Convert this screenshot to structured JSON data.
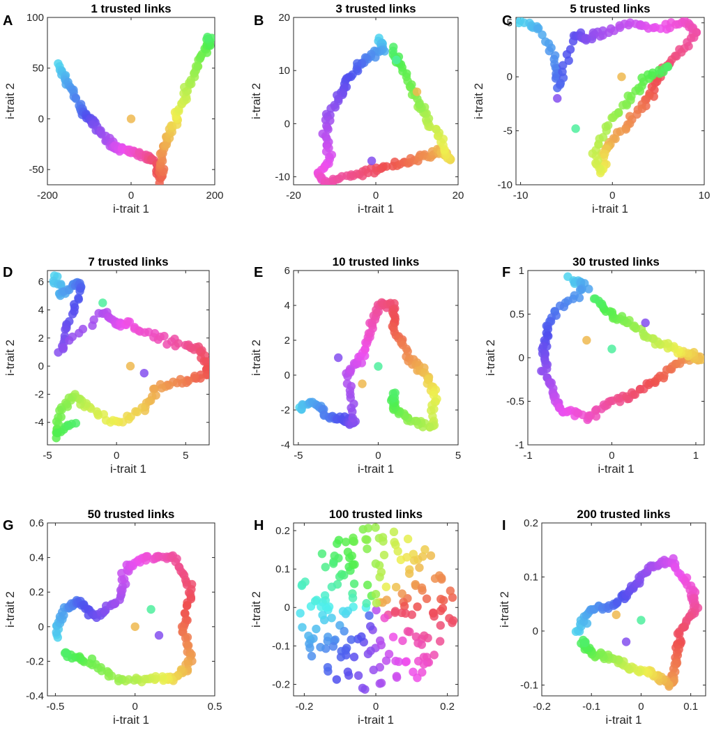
{
  "chart_data": [
    {
      "type": "scatter",
      "label": "A",
      "title": "1 trusted links",
      "xlabel": "i-trait 1",
      "ylabel": "i-trait 2",
      "xlim": [
        -200,
        200
      ],
      "ylim": [
        -65,
        100
      ],
      "xticks": [
        -200,
        0,
        200
      ],
      "yticks": [
        -50,
        0,
        50,
        100
      ],
      "xtick_labels": [
        "-200",
        "0",
        "200"
      ],
      "ytick_labels": [
        "-50",
        "0",
        "50",
        "100"
      ],
      "shape": "v",
      "anchors": [
        [
          -175,
          52
        ],
        [
          -150,
          35
        ],
        [
          -120,
          10
        ],
        [
          -100,
          0
        ],
        [
          -80,
          -10
        ],
        [
          -50,
          -25
        ],
        [
          -20,
          -30
        ],
        [
          10,
          -33
        ],
        [
          40,
          -38
        ],
        [
          60,
          -45
        ],
        [
          68,
          -60
        ],
        [
          75,
          -35
        ],
        [
          90,
          -15
        ],
        [
          110,
          5
        ],
        [
          130,
          25
        ],
        [
          155,
          50
        ],
        [
          180,
          70
        ],
        [
          188,
          80
        ]
      ],
      "outliers": [
        [
          0,
          0
        ]
      ]
    },
    {
      "type": "scatter",
      "label": "B",
      "title": "3 trusted links",
      "xlabel": "i-trait 1",
      "ylabel": "i-trait 2",
      "xlim": [
        -20,
        20
      ],
      "ylim": [
        -11.5,
        20
      ],
      "xticks": [
        -20,
        0,
        20
      ],
      "yticks": [
        -10,
        0,
        10,
        20
      ],
      "xtick_labels": [
        "-20",
        "0",
        "20"
      ],
      "ytick_labels": [
        "-10",
        "0",
        "10",
        "20"
      ],
      "shape": "triangle",
      "anchors": [
        [
          1,
          16
        ],
        [
          2,
          14
        ],
        [
          -1,
          13
        ],
        [
          -4,
          11
        ],
        [
          -7,
          8
        ],
        [
          -9,
          5
        ],
        [
          -12,
          1
        ],
        [
          -12,
          -3
        ],
        [
          -11,
          -7
        ],
        [
          -14,
          -10
        ],
        [
          -12,
          -11
        ],
        [
          -7,
          -10
        ],
        [
          -2,
          -9
        ],
        [
          3,
          -8
        ],
        [
          8,
          -7
        ],
        [
          13,
          -6
        ],
        [
          16,
          -5
        ],
        [
          18,
          -7
        ],
        [
          16,
          -3
        ],
        [
          13,
          0
        ],
        [
          11,
          3
        ],
        [
          9,
          6
        ],
        [
          6,
          11
        ],
        [
          4,
          14
        ]
      ],
      "outliers": [
        [
          10,
          6
        ],
        [
          5,
          12
        ],
        [
          -1,
          -7
        ]
      ]
    },
    {
      "type": "scatter",
      "label": "C",
      "title": "5 trusted links",
      "xlabel": "i-trait 1",
      "ylabel": "i-trait 2",
      "xlim": [
        -10.5,
        10
      ],
      "ylim": [
        -10,
        5.5
      ],
      "xticks": [
        -10,
        0,
        10
      ],
      "yticks": [
        -10,
        -5,
        0,
        5
      ],
      "xtick_labels": [
        "-10",
        "0",
        "10"
      ],
      "ytick_labels": [
        "-10",
        "-5",
        "0",
        "5"
      ],
      "shape": "loop",
      "anchors": [
        [
          -10,
          5
        ],
        [
          -8,
          4.5
        ],
        [
          -6,
          1
        ],
        [
          -6,
          -1
        ],
        [
          -4,
          4
        ],
        [
          -3,
          3.5
        ],
        [
          -1,
          4
        ],
        [
          2,
          5
        ],
        [
          5,
          4.5
        ],
        [
          8,
          5
        ],
        [
          9,
          4
        ],
        [
          7,
          2
        ],
        [
          5,
          0
        ],
        [
          4,
          -2
        ],
        [
          2,
          -4
        ],
        [
          0,
          -6
        ],
        [
          -1,
          -7
        ],
        [
          -1,
          -9
        ],
        [
          -2,
          -7
        ],
        [
          0,
          -4
        ],
        [
          2,
          -2
        ],
        [
          4,
          0
        ],
        [
          6,
          1
        ]
      ],
      "outliers": [
        [
          1,
          0
        ],
        [
          -4,
          -4.8
        ],
        [
          -6,
          -2
        ]
      ]
    },
    {
      "type": "scatter",
      "label": "D",
      "title": "7 trusted links",
      "xlabel": "i-trait 1",
      "ylabel": "i-trait 2",
      "xlim": [
        -5,
        6.7
      ],
      "ylim": [
        -5.6,
        6.8
      ],
      "xticks": [
        -5,
        0,
        5
      ],
      "yticks": [
        -4,
        -2,
        0,
        2,
        4,
        6
      ],
      "xtick_labels": [
        "-5",
        "0",
        "5"
      ],
      "ytick_labels": [
        "-4",
        "-2",
        "0",
        "2",
        "4",
        "6"
      ],
      "shape": "loop",
      "anchors": [
        [
          -4.5,
          6.5
        ],
        [
          -4,
          5
        ],
        [
          -3,
          6
        ],
        [
          -2.5,
          5.5
        ],
        [
          -3.5,
          3
        ],
        [
          -4,
          1
        ],
        [
          -1,
          4
        ],
        [
          0,
          3
        ],
        [
          1,
          3
        ],
        [
          3,
          2
        ],
        [
          5,
          1.5
        ],
        [
          6.3,
          1
        ],
        [
          6.5,
          -0.5
        ],
        [
          5,
          -1
        ],
        [
          3,
          -1.5
        ],
        [
          2,
          -3
        ],
        [
          0,
          -4
        ],
        [
          -2,
          -3
        ],
        [
          -3,
          -2
        ],
        [
          -4,
          -3
        ],
        [
          -4.5,
          -5
        ],
        [
          -3,
          -4
        ]
      ],
      "outliers": [
        [
          1,
          0
        ],
        [
          -1,
          4.5
        ],
        [
          2,
          -0.5
        ]
      ]
    },
    {
      "type": "scatter",
      "label": "E",
      "title": "10 trusted links",
      "xlabel": "i-trait 1",
      "ylabel": "i-trait 2",
      "xlim": [
        -5.3,
        5
      ],
      "ylim": [
        -4,
        6
      ],
      "xticks": [
        -5,
        0,
        5
      ],
      "yticks": [
        -4,
        -2,
        0,
        2,
        4,
        6
      ],
      "xtick_labels": [
        "-5",
        "0",
        "5"
      ],
      "ytick_labels": [
        "-4",
        "-2",
        "0",
        "2",
        "4",
        "6"
      ],
      "shape": "loop",
      "anchors": [
        [
          -5,
          -2
        ],
        [
          -4,
          -1.5
        ],
        [
          -3,
          -2.5
        ],
        [
          -2,
          -2.5
        ],
        [
          -1.5,
          -2.8
        ],
        [
          -2,
          0
        ],
        [
          -1,
          1
        ],
        [
          -0.5,
          2.5
        ],
        [
          0,
          4
        ],
        [
          1,
          4
        ],
        [
          1,
          2.5
        ],
        [
          2,
          1
        ],
        [
          3,
          0
        ],
        [
          3.5,
          -1
        ],
        [
          3.5,
          -3
        ],
        [
          2,
          -2.5
        ],
        [
          1,
          -2
        ],
        [
          1,
          -1
        ]
      ],
      "outliers": [
        [
          -1,
          -0.5
        ],
        [
          0,
          0.5
        ],
        [
          -2.5,
          1
        ]
      ]
    },
    {
      "type": "scatter",
      "label": "F",
      "title": "30 trusted links",
      "xlabel": "i-trait 1",
      "ylabel": "i-trait 2",
      "xlim": [
        -1,
        1.1
      ],
      "ylim": [
        -1,
        1
      ],
      "xticks": [
        -1,
        0,
        1
      ],
      "yticks": [
        -1,
        -0.5,
        0,
        0.5,
        1
      ],
      "xtick_labels": [
        "-1",
        "0",
        "1"
      ],
      "ytick_labels": [
        "-1",
        "-0.5",
        "0",
        "0.5",
        "1"
      ],
      "shape": "loop",
      "anchors": [
        [
          -0.5,
          0.9
        ],
        [
          -0.3,
          0.8
        ],
        [
          -0.7,
          0.5
        ],
        [
          -0.8,
          0.2
        ],
        [
          -0.8,
          -0.1
        ],
        [
          -0.7,
          -0.4
        ],
        [
          -0.6,
          -0.6
        ],
        [
          -0.3,
          -0.7
        ],
        [
          0,
          -0.5
        ],
        [
          0.3,
          -0.4
        ],
        [
          0.6,
          -0.2
        ],
        [
          0.9,
          0
        ],
        [
          1.05,
          0
        ],
        [
          0.8,
          0.1
        ],
        [
          0.5,
          0.2
        ],
        [
          0.2,
          0.4
        ],
        [
          0,
          0.5
        ],
        [
          -0.2,
          0.7
        ]
      ],
      "outliers": [
        [
          -0.3,
          0.2
        ],
        [
          0,
          0.1
        ],
        [
          0.4,
          0.4
        ]
      ]
    },
    {
      "type": "scatter",
      "label": "G",
      "title": "50 trusted links",
      "xlabel": "i-trait 1",
      "ylabel": "i-trait 2",
      "xlim": [
        -0.55,
        0.5
      ],
      "ylim": [
        -0.4,
        0.6
      ],
      "xticks": [
        -0.5,
        0,
        0.5
      ],
      "yticks": [
        -0.4,
        -0.2,
        0,
        0.2,
        0.4,
        0.6
      ],
      "xtick_labels": [
        "-0.5",
        "0",
        "0.5"
      ],
      "ytick_labels": [
        "-0.4",
        "-0.2",
        "0",
        "0.2",
        "0.4",
        "0.6"
      ],
      "shape": "ring",
      "anchors": [
        [
          -0.5,
          -0.05
        ],
        [
          -0.45,
          0.1
        ],
        [
          -0.35,
          0.15
        ],
        [
          -0.25,
          0.05
        ],
        [
          -0.1,
          0.15
        ],
        [
          -0.05,
          0.35
        ],
        [
          0.1,
          0.4
        ],
        [
          0.25,
          0.4
        ],
        [
          0.35,
          0.2
        ],
        [
          0.3,
          0
        ],
        [
          0.35,
          -0.2
        ],
        [
          0.25,
          -0.3
        ],
        [
          0.1,
          -0.3
        ],
        [
          -0.1,
          -0.3
        ],
        [
          -0.3,
          -0.2
        ],
        [
          -0.45,
          -0.15
        ]
      ],
      "outliers": [
        [
          0,
          0
        ],
        [
          0.1,
          0.1
        ],
        [
          0.15,
          -0.05
        ]
      ]
    },
    {
      "type": "scatter",
      "label": "H",
      "title": "100 trusted links",
      "xlabel": "i-trait 1",
      "ylabel": "i-trait 2",
      "xlim": [
        -0.23,
        0.23
      ],
      "ylim": [
        -0.23,
        0.22
      ],
      "xticks": [
        -0.2,
        0,
        0.2
      ],
      "yticks": [
        -0.2,
        -0.1,
        0,
        0.1,
        0.2
      ],
      "xtick_labels": [
        "-0.2",
        "0",
        "0.2"
      ],
      "ytick_labels": [
        "-0.2",
        "-0.1",
        "0",
        "0.1",
        "0.2"
      ],
      "shape": "disc",
      "anchors": [
        [
          0,
          0.2
        ],
        [
          0.1,
          0.15
        ],
        [
          0.2,
          0.05
        ],
        [
          0.2,
          -0.1
        ],
        [
          0.05,
          -0.2
        ],
        [
          -0.1,
          -0.2
        ],
        [
          -0.2,
          -0.05
        ],
        [
          -0.2,
          0.1
        ],
        [
          -0.05,
          0.18
        ]
      ],
      "outliers": []
    },
    {
      "type": "scatter",
      "label": "I",
      "title": "200 trusted links",
      "xlabel": "i-trait 1",
      "ylabel": "i-trait 2",
      "xlim": [
        -0.2,
        0.13
      ],
      "ylim": [
        -0.12,
        0.2
      ],
      "xticks": [
        -0.2,
        -0.1,
        0,
        0.1
      ],
      "yticks": [
        -0.1,
        0,
        0.1,
        0.2
      ],
      "xtick_labels": [
        "-0.2",
        "-0.1",
        "0",
        "0.1"
      ],
      "ytick_labels": [
        "-0.1",
        "0",
        "0.1",
        "0.2"
      ],
      "shape": "loop",
      "anchors": [
        [
          -0.13,
          0
        ],
        [
          -0.1,
          0.04
        ],
        [
          -0.05,
          0.05
        ],
        [
          -0.02,
          0.08
        ],
        [
          0.02,
          0.12
        ],
        [
          0.06,
          0.13
        ],
        [
          0.1,
          0.08
        ],
        [
          0.11,
          0.04
        ],
        [
          0.08,
          0
        ],
        [
          0.07,
          -0.05
        ],
        [
          0.06,
          -0.1
        ],
        [
          0.03,
          -0.08
        ],
        [
          -0.02,
          -0.07
        ],
        [
          -0.06,
          -0.05
        ],
        [
          -0.1,
          -0.04
        ],
        [
          -0.12,
          -0.02
        ]
      ],
      "outliers": [
        [
          -0.05,
          0.03
        ],
        [
          0,
          0.02
        ],
        [
          -0.03,
          -0.02
        ]
      ]
    }
  ]
}
